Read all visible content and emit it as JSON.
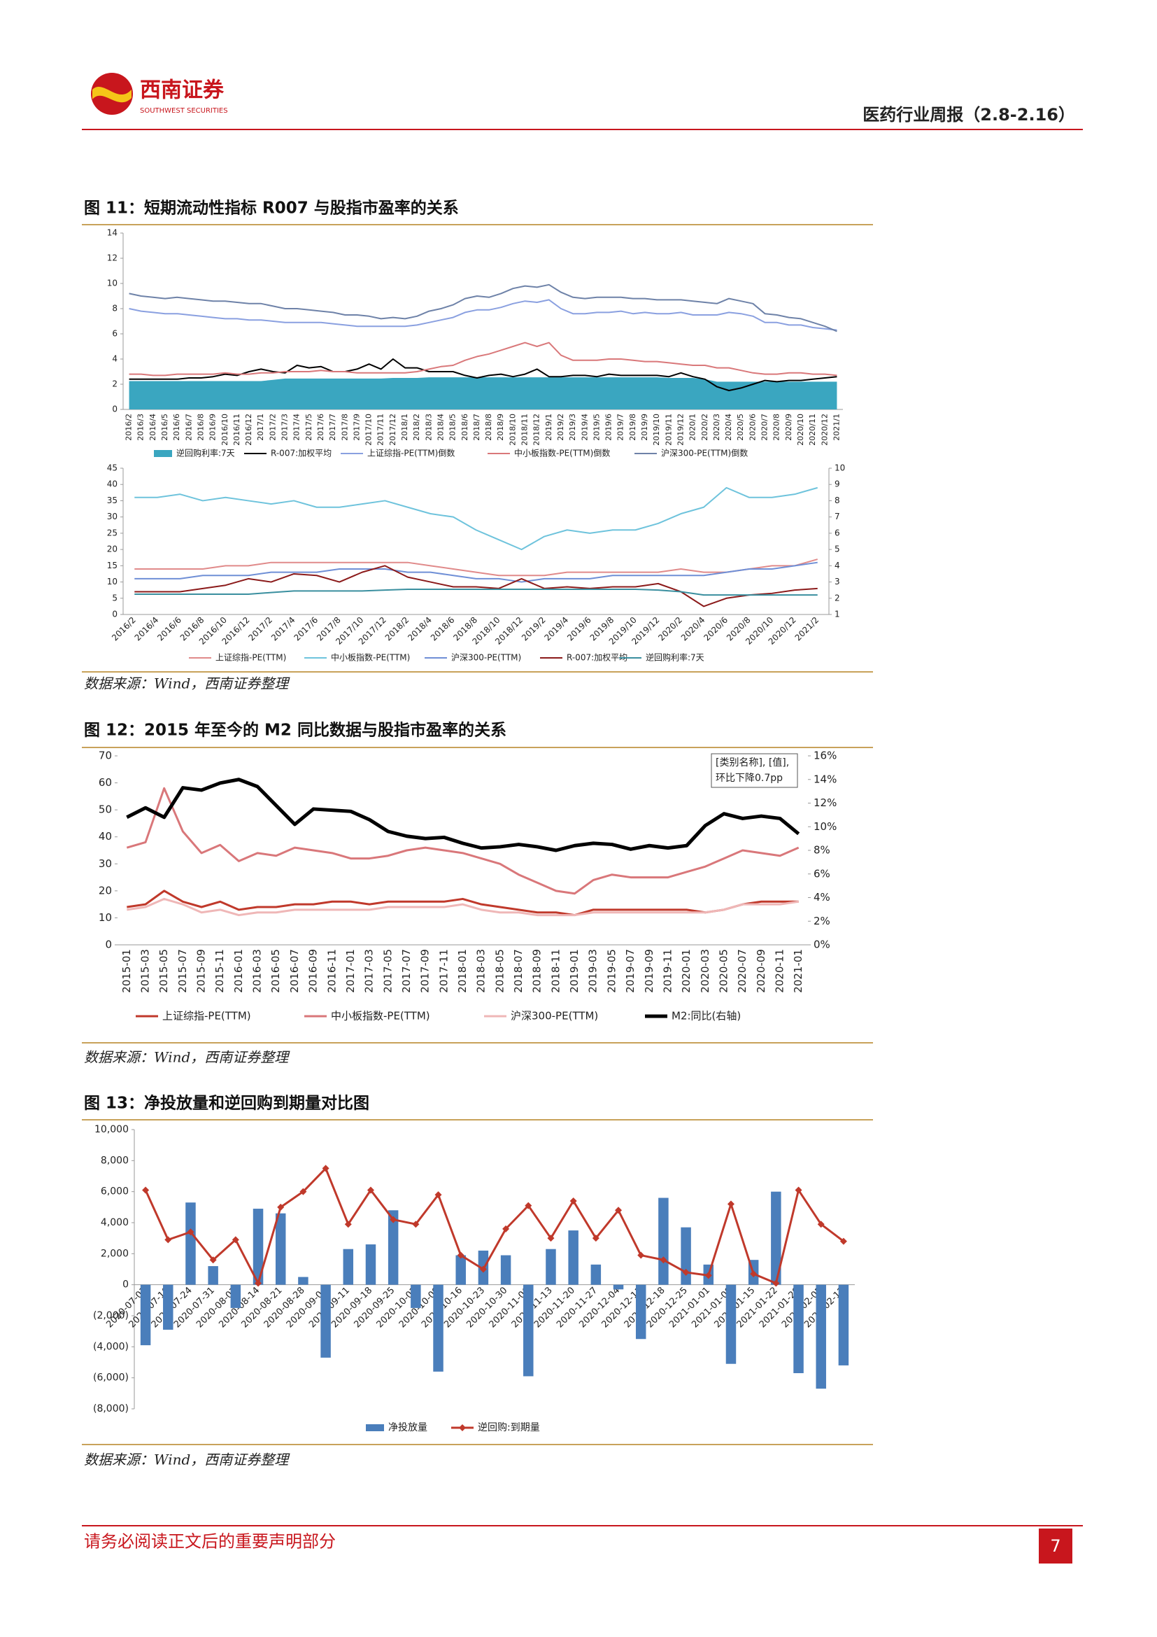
{
  "header": {
    "logo_name": "西南证券",
    "logo_subtitle": "SOUTHWEST SECURITIES",
    "report_title": "医药行业周报（2.8-2.16）"
  },
  "figures": [
    {
      "caption": "图 11：短期流动性指标 R007 与股指市盈率的关系",
      "source": "数据来源：Wind，西南证券整理"
    },
    {
      "caption": "图 12：2015 年至今的 M2 同比数据与股指市盈率的关系",
      "source": "数据来源：Wind，西南证券整理"
    },
    {
      "caption": "图 13：净投放量和逆回购到期量对比图",
      "source": "数据来源：Wind，西南证券整理"
    }
  ],
  "chart_data": [
    {
      "type": "line",
      "legend": "bottom",
      "categories": [
        "2016/2",
        "2016/3",
        "2016/4",
        "2016/5",
        "2016/6",
        "2016/7",
        "2016/8",
        "2016/9",
        "2016/10",
        "2016/11",
        "2016/12",
        "2017/1",
        "2017/2",
        "2017/3",
        "2017/4",
        "2017/5",
        "2017/6",
        "2017/7",
        "2017/8",
        "2017/9",
        "2017/10",
        "2017/11",
        "2017/12",
        "2018/1",
        "2018/2",
        "2018/3",
        "2018/4",
        "2018/5",
        "2018/6",
        "2018/7",
        "2018/8",
        "2018/9",
        "2018/10",
        "2018/11",
        "2018/12",
        "2019/1",
        "2019/2",
        "2019/3",
        "2019/4",
        "2019/5",
        "2019/6",
        "2019/7",
        "2019/8",
        "2019/9",
        "2019/10",
        "2019/11",
        "2019/12",
        "2020/1",
        "2020/2",
        "2020/3",
        "2020/4",
        "2020/5",
        "2020/6",
        "2020/7",
        "2020/8",
        "2020/9",
        "2020/10",
        "2020/11",
        "2020/12",
        "2021/1"
      ],
      "ylim": [
        0,
        14
      ],
      "yticks": [
        0,
        2,
        4,
        6,
        8,
        10,
        12,
        14
      ],
      "series": [
        {
          "name": "逆回购利率:7天",
          "type": "area",
          "color": "#3aa6c0",
          "values": [
            2.25,
            2.25,
            2.25,
            2.25,
            2.25,
            2.25,
            2.25,
            2.25,
            2.25,
            2.25,
            2.25,
            2.25,
            2.35,
            2.45,
            2.45,
            2.45,
            2.45,
            2.45,
            2.45,
            2.45,
            2.45,
            2.45,
            2.5,
            2.5,
            2.5,
            2.55,
            2.55,
            2.55,
            2.55,
            2.55,
            2.55,
            2.55,
            2.55,
            2.55,
            2.55,
            2.55,
            2.55,
            2.55,
            2.55,
            2.55,
            2.55,
            2.55,
            2.55,
            2.55,
            2.55,
            2.5,
            2.5,
            2.5,
            2.4,
            2.2,
            2.2,
            2.2,
            2.2,
            2.2,
            2.2,
            2.2,
            2.2,
            2.2,
            2.2,
            2.2
          ]
        },
        {
          "name": "R-007:加权平均",
          "color": "#000000",
          "values": [
            2.4,
            2.4,
            2.4,
            2.4,
            2.4,
            2.5,
            2.5,
            2.6,
            2.8,
            2.7,
            3.0,
            3.2,
            3.0,
            2.9,
            3.5,
            3.3,
            3.4,
            3.0,
            3.0,
            3.2,
            3.6,
            3.2,
            4.0,
            3.3,
            3.3,
            3.0,
            3.0,
            3.0,
            2.7,
            2.5,
            2.7,
            2.8,
            2.6,
            2.8,
            3.2,
            2.6,
            2.6,
            2.7,
            2.7,
            2.6,
            2.8,
            2.7,
            2.7,
            2.7,
            2.7,
            2.6,
            2.9,
            2.6,
            2.4,
            1.8,
            1.5,
            1.7,
            2.0,
            2.3,
            2.2,
            2.3,
            2.3,
            2.4,
            2.5,
            2.6
          ]
        },
        {
          "name": "上证综指-PE(TTM)倒数",
          "color": "#8aa0e0",
          "values": [
            8.0,
            7.8,
            7.7,
            7.6,
            7.6,
            7.5,
            7.4,
            7.3,
            7.2,
            7.2,
            7.1,
            7.1,
            7.0,
            6.9,
            6.9,
            6.9,
            6.9,
            6.8,
            6.7,
            6.6,
            6.6,
            6.6,
            6.6,
            6.6,
            6.7,
            6.9,
            7.1,
            7.3,
            7.7,
            7.9,
            7.9,
            8.1,
            8.4,
            8.6,
            8.5,
            8.7,
            8.0,
            7.6,
            7.6,
            7.7,
            7.7,
            7.8,
            7.6,
            7.7,
            7.6,
            7.6,
            7.7,
            7.5,
            7.5,
            7.5,
            7.7,
            7.6,
            7.4,
            6.9,
            6.9,
            6.7,
            6.7,
            6.5,
            6.4,
            6.3
          ]
        },
        {
          "name": "中小板指数-PE(TTM)倒数",
          "color": "#d9787a",
          "values": [
            2.8,
            2.8,
            2.7,
            2.7,
            2.8,
            2.8,
            2.8,
            2.8,
            2.9,
            2.8,
            2.8,
            2.9,
            2.9,
            3.0,
            3.0,
            3.0,
            3.1,
            3.0,
            3.0,
            2.9,
            2.9,
            2.9,
            2.9,
            2.9,
            3.0,
            3.2,
            3.4,
            3.5,
            3.9,
            4.2,
            4.4,
            4.7,
            5.0,
            5.3,
            5.0,
            5.3,
            4.3,
            3.9,
            3.9,
            3.9,
            4.0,
            4.0,
            3.9,
            3.8,
            3.8,
            3.7,
            3.6,
            3.5,
            3.5,
            3.3,
            3.3,
            3.1,
            2.9,
            2.8,
            2.8,
            2.9,
            2.9,
            2.8,
            2.8,
            2.7
          ]
        },
        {
          "name": "沪深300-PE(TTM)倒数",
          "color": "#6e82a8",
          "values": [
            9.2,
            9.0,
            8.9,
            8.8,
            8.9,
            8.8,
            8.7,
            8.6,
            8.6,
            8.5,
            8.4,
            8.4,
            8.2,
            8.0,
            8.0,
            7.9,
            7.8,
            7.7,
            7.5,
            7.5,
            7.4,
            7.2,
            7.3,
            7.2,
            7.4,
            7.8,
            8.0,
            8.3,
            8.8,
            9.0,
            8.9,
            9.2,
            9.6,
            9.8,
            9.7,
            9.9,
            9.3,
            8.9,
            8.8,
            8.9,
            8.9,
            8.9,
            8.8,
            8.8,
            8.7,
            8.7,
            8.7,
            8.6,
            8.5,
            8.4,
            8.8,
            8.6,
            8.4,
            7.6,
            7.5,
            7.3,
            7.2,
            6.9,
            6.6,
            6.2
          ]
        }
      ]
    },
    {
      "type": "line",
      "legend": "bottom",
      "categories": [
        "2016/2",
        "2016/4",
        "2016/6",
        "2016/8",
        "2016/10",
        "2016/12",
        "2017/2",
        "2017/4",
        "2017/6",
        "2017/8",
        "2017/10",
        "2017/12",
        "2018/2",
        "2018/4",
        "2018/6",
        "2018/8",
        "2018/10",
        "2018/12",
        "2019/2",
        "2019/4",
        "2019/6",
        "2019/8",
        "2019/10",
        "2019/12",
        "2020/2",
        "2020/4",
        "2020/6",
        "2020/8",
        "2020/10",
        "2020/12",
        "2021/2"
      ],
      "ylim": [
        0,
        45
      ],
      "yticks": [
        0,
        5,
        10,
        15,
        20,
        25,
        30,
        35,
        40,
        45
      ],
      "y2lim": [
        1,
        10
      ],
      "y2ticks": [
        1,
        2,
        3,
        4,
        5,
        6,
        7,
        8,
        9,
        10
      ],
      "series": [
        {
          "name": "上证综指-PE(TTM)",
          "color": "#e08a8a",
          "values": [
            14,
            14,
            14,
            14,
            15,
            15,
            16,
            16,
            16,
            16,
            16,
            16,
            16,
            15,
            14,
            13,
            12,
            12,
            12,
            13,
            13,
            13,
            13,
            13,
            14,
            13,
            13,
            14,
            15,
            15,
            17
          ]
        },
        {
          "name": "中小板指数-PE(TTM)",
          "color": "#6ec3dc",
          "values": [
            36,
            36,
            37,
            35,
            36,
            35,
            34,
            35,
            33,
            33,
            34,
            35,
            33,
            31,
            30,
            26,
            23,
            20,
            24,
            26,
            25,
            26,
            26,
            28,
            31,
            33,
            39,
            36,
            36,
            37,
            39
          ]
        },
        {
          "name": "沪深300-PE(TTM)",
          "color": "#6f8fd6",
          "values": [
            11,
            11,
            11,
            12,
            12,
            12,
            13,
            13,
            13,
            14,
            14,
            14,
            13,
            13,
            12,
            11,
            11,
            10,
            11,
            11,
            11,
            12,
            12,
            12,
            12,
            12,
            13,
            14,
            14,
            15,
            16
          ]
        },
        {
          "name": "R-007:加权平均",
          "color": "#8b1a1a",
          "axis": "y2",
          "values": [
            2.4,
            2.4,
            2.4,
            2.6,
            2.8,
            3.2,
            3.0,
            3.5,
            3.4,
            3.0,
            3.6,
            4.0,
            3.3,
            3.0,
            2.7,
            2.7,
            2.6,
            3.2,
            2.6,
            2.7,
            2.6,
            2.7,
            2.7,
            2.9,
            2.4,
            1.5,
            2.0,
            2.2,
            2.3,
            2.5,
            2.6
          ]
        },
        {
          "name": "逆回购利率:7天",
          "color": "#3a8f9f",
          "axis": "y2",
          "values": [
            2.25,
            2.25,
            2.25,
            2.25,
            2.25,
            2.25,
            2.35,
            2.45,
            2.45,
            2.45,
            2.45,
            2.5,
            2.55,
            2.55,
            2.55,
            2.55,
            2.55,
            2.55,
            2.55,
            2.55,
            2.55,
            2.55,
            2.55,
            2.5,
            2.4,
            2.2,
            2.2,
            2.2,
            2.2,
            2.2,
            2.2
          ]
        }
      ]
    },
    {
      "type": "line",
      "legend": "bottom",
      "categories": [
        "2015-01",
        "2015-03",
        "2015-05",
        "2015-07",
        "2015-09",
        "2015-11",
        "2016-01",
        "2016-03",
        "2016-05",
        "2016-07",
        "2016-09",
        "2016-11",
        "2017-01",
        "2017-03",
        "2017-05",
        "2017-07",
        "2017-09",
        "2017-11",
        "2018-01",
        "2018-03",
        "2018-05",
        "2018-07",
        "2018-09",
        "2018-11",
        "2019-01",
        "2019-03",
        "2019-05",
        "2019-07",
        "2019-09",
        "2019-11",
        "2020-01",
        "2020-03",
        "2020-05",
        "2020-07",
        "2020-09",
        "2020-11",
        "2021-01"
      ],
      "ylim": [
        0,
        70
      ],
      "yticks": [
        0,
        10,
        20,
        30,
        40,
        50,
        60,
        70
      ],
      "y2lim": [
        0,
        16
      ],
      "y2ticks": [
        {
          "value": 0,
          "label": "0%"
        },
        {
          "value": 2,
          "label": "2%"
        },
        {
          "value": 4,
          "label": "4%"
        },
        {
          "value": 6,
          "label": "6%"
        },
        {
          "value": 8,
          "label": "8%"
        },
        {
          "value": 10,
          "label": "10%"
        },
        {
          "value": 12,
          "label": "12%"
        },
        {
          "value": 14,
          "label": "14%"
        },
        {
          "value": 16,
          "label": "16%"
        }
      ],
      "annotation": [
        "[类别名称], [值],",
        "环比下降0.7pp"
      ],
      "series": [
        {
          "name": "上证综指-PE(TTM)",
          "color": "#c0392b",
          "values": [
            14,
            15,
            20,
            16,
            14,
            16,
            13,
            14,
            14,
            15,
            15,
            16,
            16,
            15,
            16,
            16,
            16,
            16,
            17,
            15,
            14,
            13,
            12,
            12,
            11,
            13,
            13,
            13,
            13,
            13,
            13,
            12,
            13,
            15,
            16,
            16,
            16
          ]
        },
        {
          "name": "中小板指数-PE(TTM)",
          "color": "#d9777a",
          "values": [
            36,
            38,
            58,
            42,
            34,
            37,
            31,
            34,
            33,
            36,
            35,
            34,
            32,
            32,
            33,
            35,
            36,
            35,
            34,
            32,
            30,
            26,
            23,
            20,
            19,
            24,
            26,
            25,
            25,
            25,
            27,
            29,
            32,
            35,
            34,
            33,
            36
          ]
        },
        {
          "name": "沪深300-PE(TTM)",
          "color": "#efb7b7",
          "values": [
            13,
            14,
            17,
            15,
            12,
            13,
            11,
            12,
            12,
            13,
            13,
            13,
            13,
            13,
            14,
            14,
            14,
            14,
            15,
            13,
            12,
            12,
            11,
            11,
            11,
            12,
            12,
            12,
            12,
            12,
            12,
            12,
            13,
            15,
            15,
            15,
            16
          ]
        },
        {
          "name": "M2:同比(右轴)",
          "color": "#000000",
          "axis": "y2",
          "values": [
            10.8,
            11.6,
            10.8,
            13.3,
            13.1,
            13.7,
            14.0,
            13.4,
            11.8,
            10.2,
            11.5,
            11.4,
            11.3,
            10.6,
            9.6,
            9.2,
            9.0,
            9.1,
            8.6,
            8.2,
            8.3,
            8.5,
            8.3,
            8.0,
            8.4,
            8.6,
            8.5,
            8.1,
            8.4,
            8.2,
            8.4,
            10.1,
            11.1,
            10.7,
            10.9,
            10.7,
            9.4
          ]
        }
      ]
    },
    {
      "type": "bar",
      "legend": "bottom",
      "categories": [
        "2020-07-03",
        "2020-07-10",
        "2020-07-24",
        "2020-07-31",
        "2020-08-07",
        "2020-08-14",
        "2020-08-21",
        "2020-08-28",
        "2020-09-04",
        "2020-09-11",
        "2020-09-18",
        "2020-09-25",
        "2020-10-02",
        "2020-10-09",
        "2020-10-16",
        "2020-10-23",
        "2020-10-30",
        "2020-11-06",
        "2020-11-13",
        "2020-11-20",
        "2020-11-27",
        "2020-12-04",
        "2020-12-11",
        "2020-12-18",
        "2020-12-25",
        "2021-01-01",
        "2021-01-08",
        "2021-01-15",
        "2021-01-22",
        "2021-01-29",
        "2021-02-05",
        "2021-02-12"
      ],
      "ylim": [
        -8000,
        10000
      ],
      "yticks": [
        {
          "value": 10000,
          "label": "10,000"
        },
        {
          "value": 8000,
          "label": "8,000"
        },
        {
          "value": 6000,
          "label": "6,000"
        },
        {
          "value": 4000,
          "label": "4,000"
        },
        {
          "value": 2000,
          "label": "2,000"
        },
        0,
        {
          "value": -2000,
          "label": "(2,000)"
        },
        {
          "value": -4000,
          "label": "(4,000)"
        },
        {
          "value": -6000,
          "label": "(6,000)"
        },
        {
          "value": -8000,
          "label": "(8,000)"
        }
      ],
      "series": [
        {
          "name": "净投放量",
          "type": "bar",
          "color": "#4a7ebb",
          "values": [
            -3900,
            -2900,
            5300,
            1200,
            -1500,
            4900,
            4600,
            500,
            -4700,
            2300,
            2600,
            4800,
            -1500,
            -5600,
            1900,
            2200,
            1900,
            -5900,
            2300,
            3500,
            1300,
            -300,
            -3500,
            5600,
            3700,
            1300,
            -5100,
            1600,
            6000,
            -5700,
            -6700,
            -5200
          ]
        },
        {
          "name": "逆回购:到期量",
          "type": "line",
          "marker": "diamond",
          "color": "#c0392b",
          "values": [
            6100,
            2900,
            3400,
            1600,
            2900,
            100,
            5000,
            6000,
            7500,
            3900,
            6100,
            4200,
            3900,
            5800,
            1900,
            1000,
            3600,
            5100,
            3000,
            5400,
            3000,
            4800,
            1900,
            1600,
            800,
            600,
            5200,
            700,
            100,
            6100,
            3900,
            2800
          ]
        }
      ]
    }
  ],
  "footer": {
    "disclaimer": "请务必阅读正文后的重要声明部分",
    "page_number": 7
  }
}
